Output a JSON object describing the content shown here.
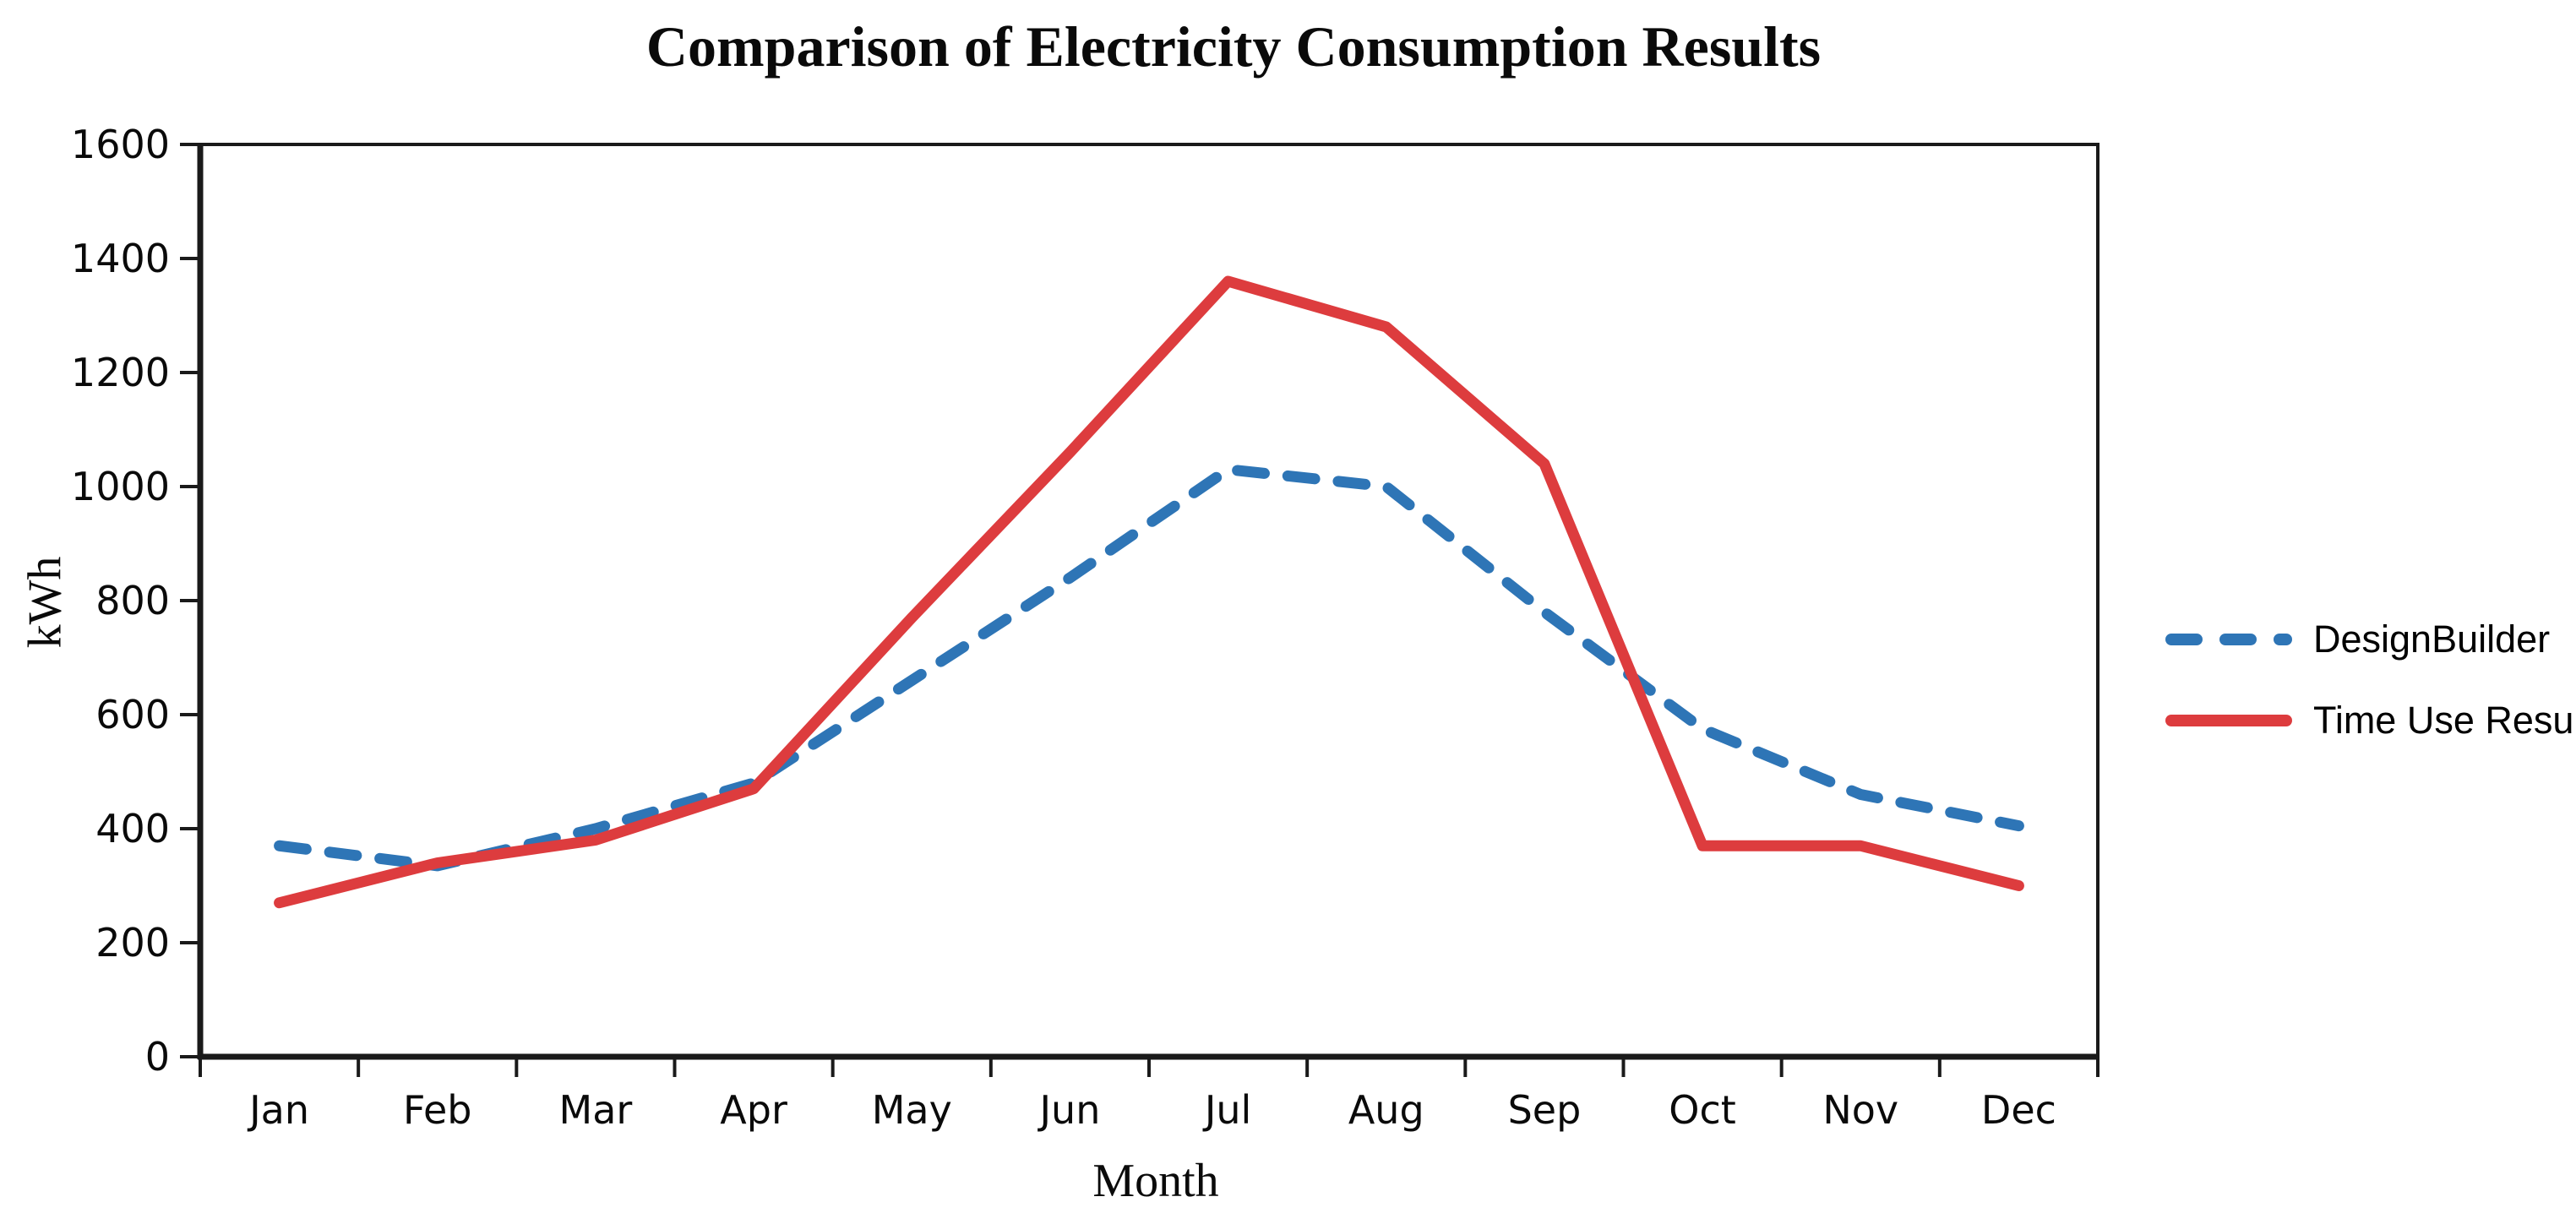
{
  "chart_data": {
    "type": "line",
    "title": "Comparison of Electricity Consumption Results",
    "xlabel": "Month",
    "ylabel": "kWh",
    "categories": [
      "Jan",
      "Feb",
      "Mar",
      "Apr",
      "May",
      "Jun",
      "Jul",
      "Aug",
      "Sep",
      "Oct",
      "Nov",
      "Dec"
    ],
    "series": [
      {
        "name": "DesignBuilder",
        "style": "dashed",
        "color": "#2E75B6",
        "values": [
          370,
          335,
          400,
          480,
          660,
          840,
          1030,
          1000,
          780,
          575,
          460,
          405
        ]
      },
      {
        "name": "Time Use Result",
        "style": "solid",
        "color": "#DD3C3E",
        "values": [
          270,
          340,
          380,
          470,
          770,
          1060,
          1360,
          1280,
          1040,
          370,
          370,
          300
        ]
      }
    ],
    "ylim": [
      0,
      1600
    ],
    "ytick_step": 200,
    "ytick_labels": [
      "0",
      "200",
      "400",
      "600",
      "800",
      "1000",
      "1200",
      "1400",
      "1600"
    ],
    "grid": false,
    "legend_position": "right"
  },
  "colors": {
    "axis": "#1a1a1a",
    "tick_text": "#0a0a0a",
    "background": "#ffffff"
  }
}
